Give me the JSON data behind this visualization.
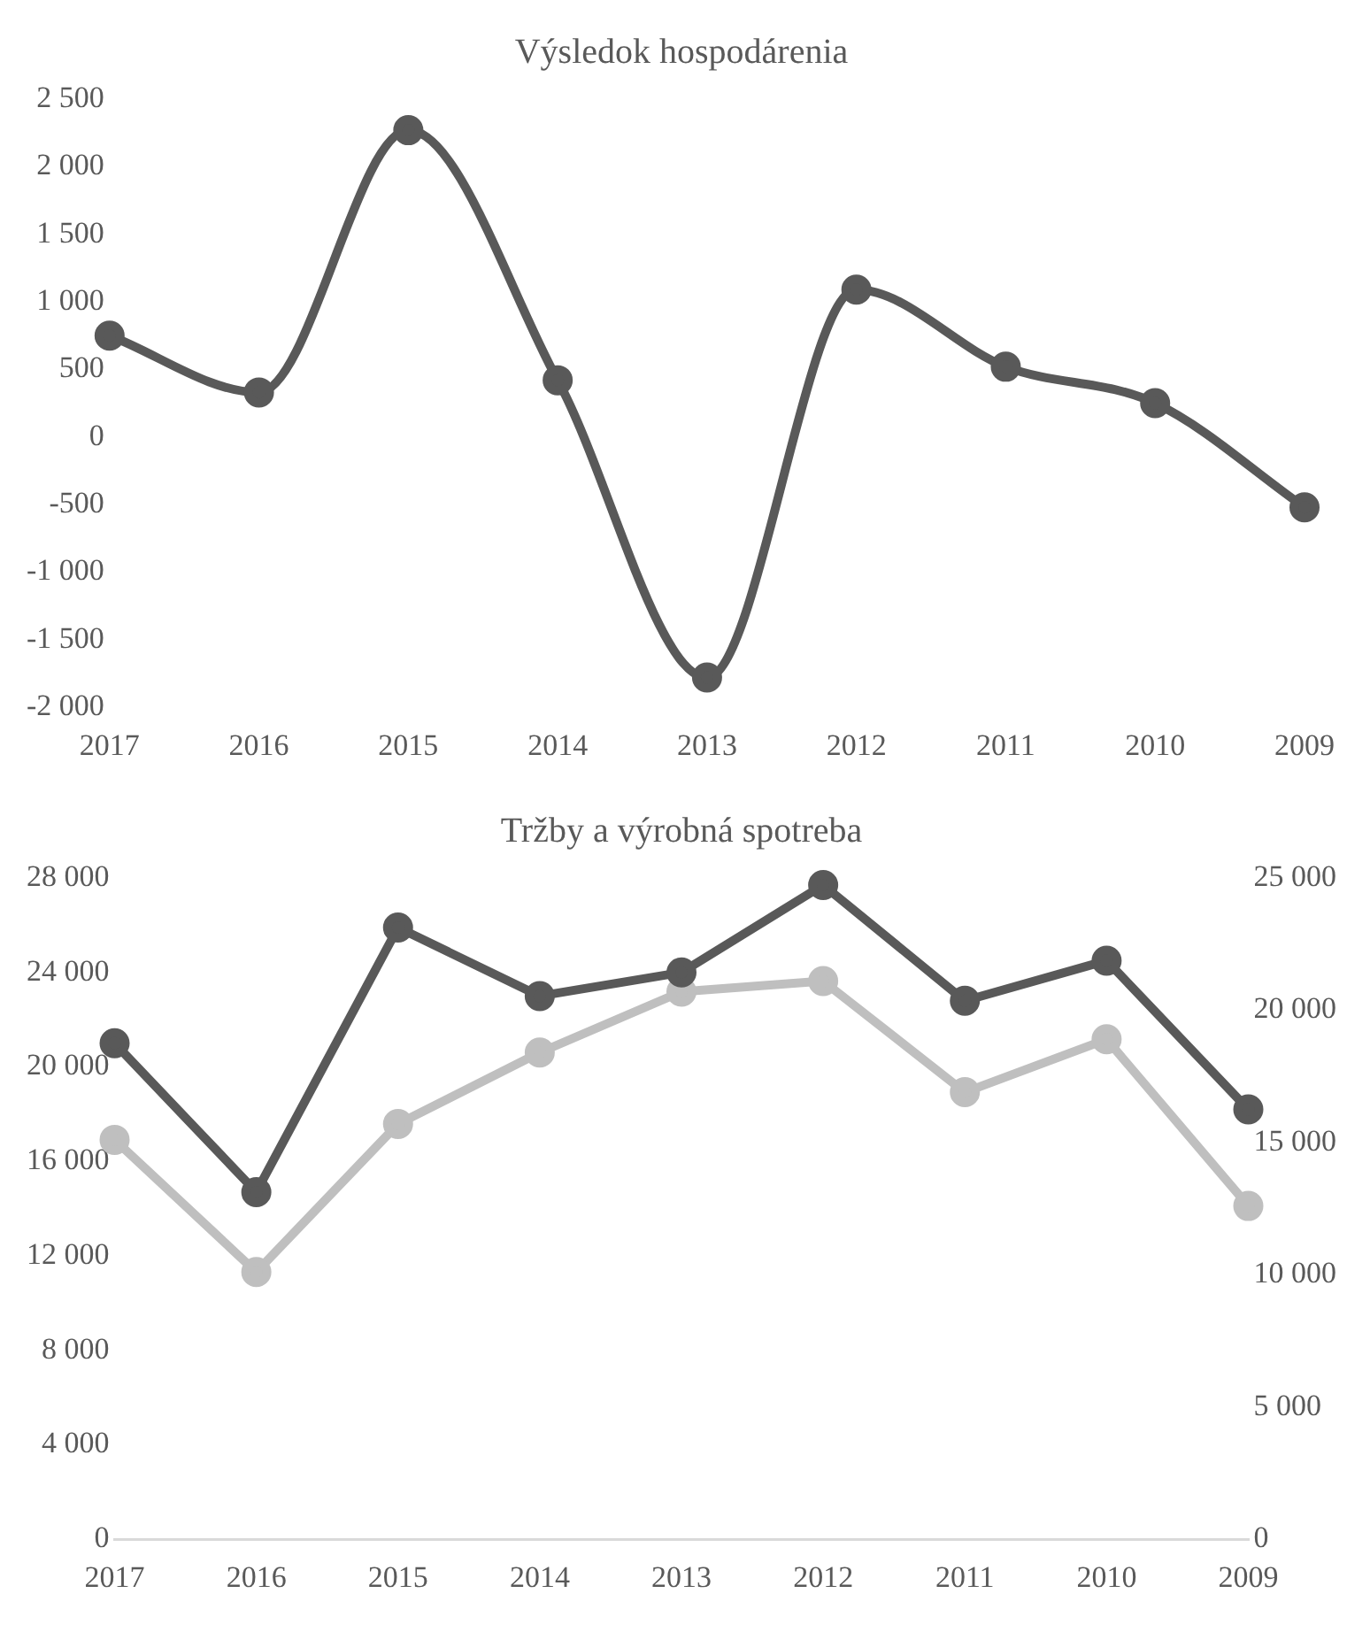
{
  "chart_data": [
    {
      "type": "line",
      "title": "Výsledok hospodárenia",
      "categories": [
        "2017",
        "2016",
        "2015",
        "2014",
        "2013",
        "2012",
        "2011",
        "2010",
        "2009"
      ],
      "marker": "circle",
      "series": [
        {
          "color": "#595959",
          "values": [
            750,
            330,
            2270,
            420,
            -1780,
            1090,
            520,
            250,
            -520
          ]
        }
      ],
      "ylim": [
        -2000,
        2500
      ],
      "yticks": [
        {
          "value": -2000,
          "label": "-2 000"
        },
        {
          "value": -1500,
          "label": "-1 500"
        },
        {
          "value": -1000,
          "label": "-1 000"
        },
        -500,
        0,
        500,
        {
          "value": 1000,
          "label": "1 000"
        },
        {
          "value": 1500,
          "label": "1 500"
        },
        {
          "value": 2000,
          "label": "2 000"
        },
        {
          "value": 2500,
          "label": "2 500"
        }
      ],
      "grid": false
    },
    {
      "type": "line",
      "title": "Tržby a výrobná spotreba",
      "categories": [
        "2017",
        "2016",
        "2015",
        "2014",
        "2013",
        "2012",
        "2011",
        "2010",
        "2009"
      ],
      "marker": "circle",
      "series": [
        {
          "color": "#595959",
          "values": [
            21000,
            14700,
            25900,
            23000,
            24000,
            27700,
            22800,
            24500,
            18200
          ]
        },
        {
          "color": "#bfbfbf",
          "axis": "y2",
          "values": [
            15100,
            10100,
            15700,
            18400,
            20700,
            21100,
            16900,
            18900,
            12600
          ]
        }
      ],
      "ylim": [
        0,
        28000
      ],
      "yticks": [
        0,
        {
          "value": 4000,
          "label": "4 000"
        },
        {
          "value": 8000,
          "label": "8 000"
        },
        {
          "value": 12000,
          "label": "12 000"
        },
        {
          "value": 16000,
          "label": "16 000"
        },
        {
          "value": 20000,
          "label": "20 000"
        },
        {
          "value": 24000,
          "label": "24 000"
        },
        {
          "value": 28000,
          "label": "28 000"
        }
      ],
      "y2lim": [
        0,
        25000
      ],
      "y2ticks": [
        0,
        {
          "value": 5000,
          "label": "5 000"
        },
        {
          "value": 10000,
          "label": "10 000"
        },
        {
          "value": 15000,
          "label": "15 000"
        },
        {
          "value": 20000,
          "label": "20 000"
        },
        {
          "value": 25000,
          "label": "25 000"
        }
      ],
      "grid": false
    }
  ]
}
